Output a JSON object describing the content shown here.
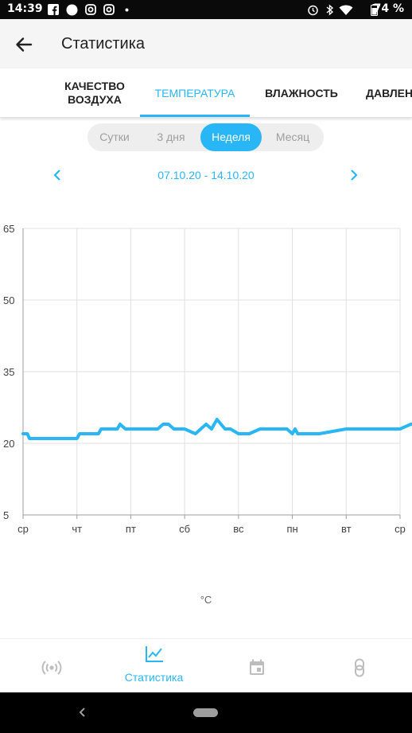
{
  "status_bar": {
    "time": "14:39",
    "battery": "74 %"
  },
  "app_bar": {
    "title": "Статистика",
    "back_icon": "arrow-back-icon"
  },
  "tabs": [
    {
      "label_line1": "КАЧЕСТВО",
      "label_line2": "ВОЗДУХА",
      "active": false
    },
    {
      "label_line1": "ТЕМПЕРАТУРА",
      "label_line2": "",
      "active": true
    },
    {
      "label_line1": "ВЛАЖНОСТЬ",
      "label_line2": "",
      "active": false
    },
    {
      "label_line1": "ДАВЛЕН",
      "label_line2": "",
      "active": false
    }
  ],
  "period_selector": {
    "options": [
      "Сутки",
      "3 дня",
      "Неделя",
      "Месяц"
    ],
    "selected": "Неделя"
  },
  "date_range": {
    "label": "07.10.20 - 14.10.20"
  },
  "colors": {
    "accent": "#29b6f6",
    "grid": "#e0e0e0",
    "line": "#29b6f6"
  },
  "chart_data": {
    "type": "line",
    "ylim": [
      5,
      65
    ],
    "yticks": [
      "65",
      "50",
      "35",
      "20",
      "5"
    ],
    "ytick_values": [
      65,
      50,
      35,
      20,
      5
    ],
    "categories": [
      "ср",
      "чт",
      "пт",
      "сб",
      "вс",
      "пн",
      "вт",
      "ср"
    ],
    "grid": true,
    "unit_label": "°C",
    "series": [
      {
        "x": [
          0,
          0.08,
          0.12,
          0.2,
          0.5,
          1.0,
          1.05,
          1.4,
          1.45,
          1.75,
          1.8,
          1.9,
          2.0,
          2.1,
          2.5,
          2.6,
          2.7,
          2.8,
          3.0,
          3.2,
          3.4,
          3.5,
          3.6,
          3.75,
          3.85,
          4.0,
          4.2,
          4.4,
          4.5,
          4.6,
          4.9,
          5.0,
          5.05,
          5.1,
          5.2,
          5.5,
          6.0,
          6.5,
          6.9,
          7.0,
          7.2,
          7.3,
          7.4,
          7.5,
          7.7,
          8.0
        ],
        "values": [
          22,
          22,
          21,
          21,
          21,
          21,
          22,
          22,
          23,
          23,
          24,
          23,
          23,
          23,
          23,
          24,
          24,
          23,
          23,
          22,
          24,
          23,
          25,
          23,
          23,
          22,
          22,
          23,
          23,
          23,
          23,
          22,
          23,
          22,
          22,
          22,
          23,
          23,
          23,
          23,
          24,
          24,
          25,
          23,
          24,
          24
        ]
      }
    ]
  },
  "bottom_nav": {
    "items": [
      {
        "icon": "sensor-broadcast-icon",
        "label": ""
      },
      {
        "icon": "chart-line-icon",
        "label": "Статистика"
      },
      {
        "icon": "calendar-icon",
        "label": ""
      },
      {
        "icon": "link-icon",
        "label": ""
      }
    ]
  }
}
